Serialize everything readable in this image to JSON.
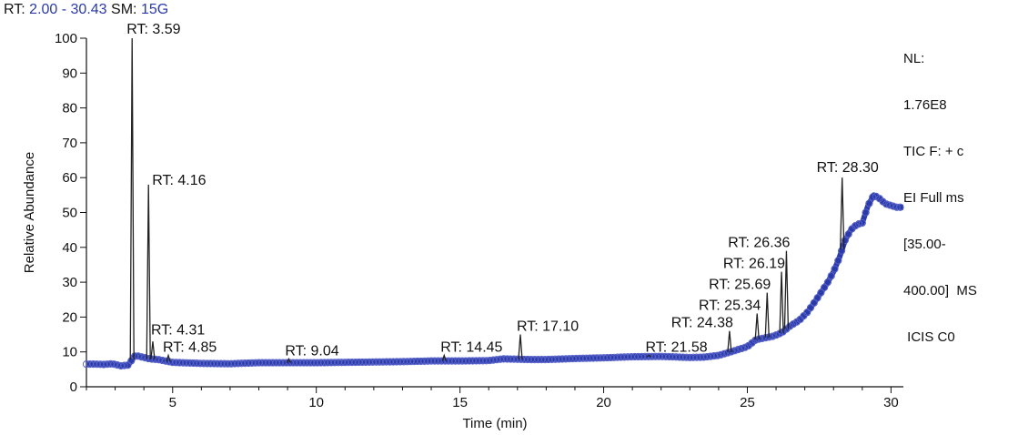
{
  "header": {
    "rt_label": "RT:",
    "rt_range": "2.00 - 30.43",
    "sm_label": "SM:",
    "sm_value": "15G"
  },
  "info": {
    "lines": [
      "NL:",
      "1.76E8",
      "TIC F: + c",
      "EI Full ms",
      "[35.00-",
      "400.00]  MS",
      " ICIS C0"
    ]
  },
  "colors": {
    "trace": "#2a3aa8",
    "marker": "#5560c8",
    "peak": "#222222"
  },
  "chart_data": {
    "type": "line",
    "title": "",
    "xlabel": "Time (min)",
    "ylabel": "Relative Abundance",
    "xlim": [
      2.0,
      30.43
    ],
    "ylim": [
      0,
      100
    ],
    "xticks": [
      5,
      10,
      15,
      20,
      25,
      30
    ],
    "yticks": [
      0,
      10,
      20,
      30,
      40,
      50,
      60,
      70,
      80,
      90,
      100
    ],
    "series": [
      {
        "x": [
          2.0,
          2.3,
          2.6,
          2.9,
          3.2,
          3.45,
          3.7,
          3.9,
          4.2,
          4.5,
          5.0,
          6.0,
          7.0,
          8.0,
          9.0,
          10.0,
          11.0,
          12.0,
          13.0,
          14.0,
          15.0,
          16.0,
          16.5,
          17.0,
          17.5,
          18.0,
          19.0,
          20.0,
          21.0,
          22.0,
          23.0,
          23.5,
          24.0,
          24.5,
          25.0,
          25.3,
          25.6,
          25.9,
          26.2,
          26.5,
          26.8,
          27.1,
          27.4,
          27.6,
          27.8,
          28.0,
          28.2,
          28.4,
          28.6,
          28.8,
          29.0,
          29.2,
          29.4,
          29.6,
          29.8,
          30.0,
          30.2,
          30.43
        ],
        "y": [
          6.5,
          6.5,
          6.4,
          6.6,
          6.0,
          6.2,
          9.0,
          8.6,
          8.0,
          7.8,
          7.0,
          6.7,
          6.6,
          6.9,
          6.9,
          6.9,
          7.0,
          7.1,
          7.2,
          7.4,
          7.4,
          7.5,
          8.0,
          7.9,
          7.8,
          7.8,
          8.1,
          8.3,
          8.6,
          8.7,
          8.4,
          8.5,
          9.0,
          10.2,
          11.5,
          13.5,
          14.0,
          14.5,
          15.5,
          17.5,
          19.0,
          21.5,
          25.0,
          27.5,
          30.0,
          33.0,
          37.0,
          42.0,
          45.0,
          46.5,
          47.0,
          52.0,
          55.0,
          54.0,
          52.5,
          52.0,
          51.5,
          51.5
        ]
      }
    ],
    "peaks": [
      {
        "x": 3.59,
        "y": 100,
        "label": "RT: 3.59"
      },
      {
        "x": 4.16,
        "y": 58,
        "label": "RT: 4.16"
      },
      {
        "x": 4.31,
        "y": 13,
        "label": "RT: 4.31"
      },
      {
        "x": 4.85,
        "y": 9,
        "label": "RT: 4.85"
      },
      {
        "x": 9.04,
        "y": 8,
        "label": "RT: 9.04"
      },
      {
        "x": 14.45,
        "y": 9,
        "label": "RT: 14.45"
      },
      {
        "x": 17.1,
        "y": 15,
        "label": "RT: 17.10"
      },
      {
        "x": 21.58,
        "y": 9,
        "label": "RT: 21.58"
      },
      {
        "x": 24.38,
        "y": 16,
        "label": "RT: 24.38"
      },
      {
        "x": 25.34,
        "y": 21,
        "label": "RT: 25.34"
      },
      {
        "x": 25.69,
        "y": 27,
        "label": "RT: 25.69"
      },
      {
        "x": 26.19,
        "y": 33,
        "label": "RT: 26.19"
      },
      {
        "x": 26.36,
        "y": 39,
        "label": "RT: 26.36"
      },
      {
        "x": 28.3,
        "y": 60,
        "label": "RT: 28.30"
      }
    ],
    "legend": "none",
    "grid": false
  }
}
